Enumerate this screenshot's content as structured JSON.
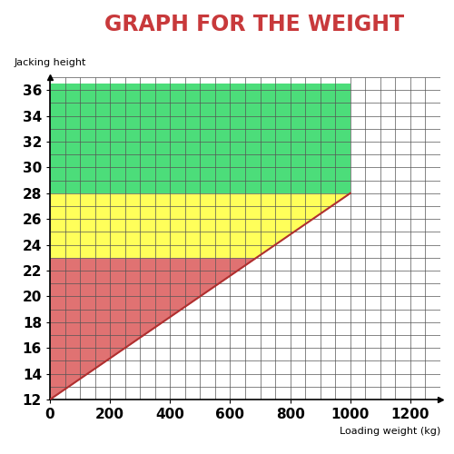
{
  "chart_data": {
    "type": "area",
    "title": "GRAPH FOR THE WEIGHT",
    "x_label": "Loading weight (kg)",
    "y_label": "Jacking height",
    "xlim": [
      0,
      1300
    ],
    "xticks": [
      0,
      200,
      400,
      600,
      800,
      1000,
      1200
    ],
    "ylim": [
      12,
      37
    ],
    "yticks": [
      12,
      14,
      16,
      18,
      20,
      22,
      24,
      26,
      28,
      30,
      32,
      34,
      36
    ],
    "grid": true,
    "series": [
      {
        "type": "area",
        "color": "#4cdd7a",
        "x": [
          0,
          1000
        ],
        "lower": [
          28,
          28
        ],
        "upper": [
          36.5,
          36.5
        ]
      },
      {
        "type": "area",
        "color": "#ffff5a",
        "x": [
          0,
          687.5,
          1000
        ],
        "lower": [
          23,
          23,
          28
        ],
        "upper": [
          28,
          28,
          28
        ]
      },
      {
        "type": "area",
        "color": "#e07272",
        "x": [
          0,
          687.5
        ],
        "lower": [
          12,
          23
        ],
        "upper": [
          23,
          23
        ]
      },
      {
        "type": "line",
        "color": "#b03030",
        "x": [
          0,
          1000
        ],
        "values": [
          12,
          28
        ]
      }
    ]
  }
}
